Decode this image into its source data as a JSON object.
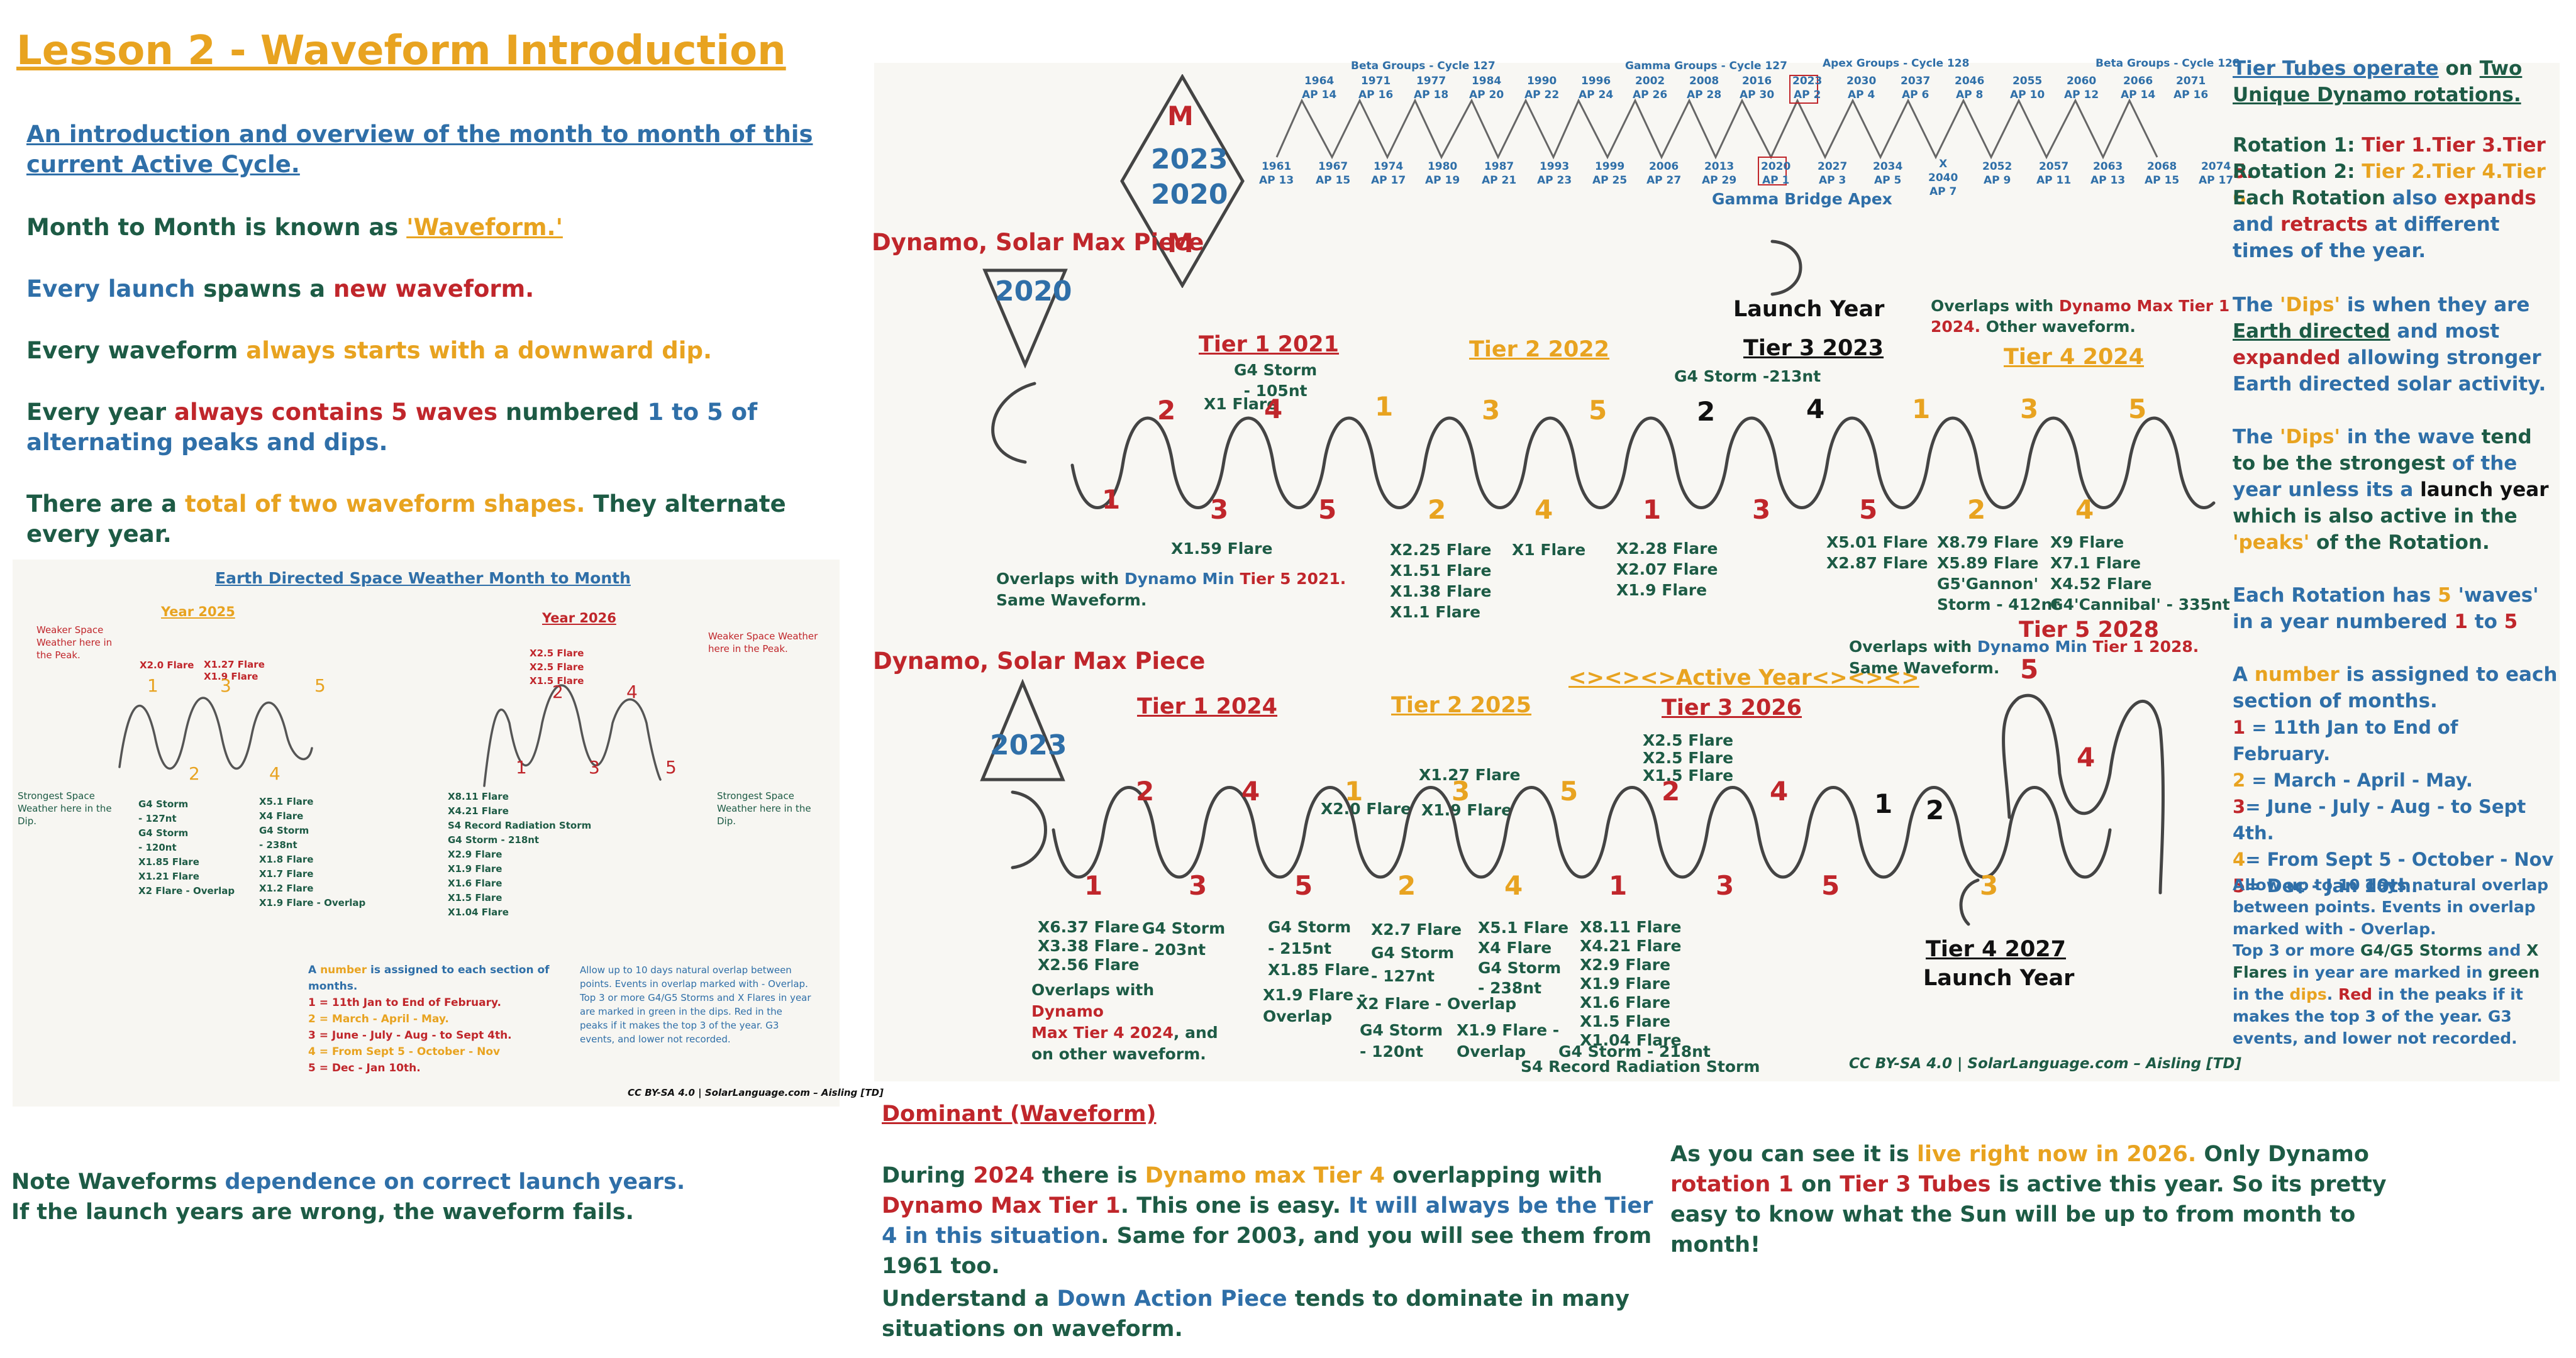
{
  "title": "Lesson 2 - Waveform Introduction",
  "intro": {
    "link": "An introduction and overview of the month to month of this current Active Cycle. ",
    "l2a": "Month to Month is known as ",
    "l2b": "'Waveform.'",
    "l3a": "Every launch",
    "l3b": " spawns a ",
    "l3c": "new waveform.",
    "l4a": "Every waveform ",
    "l4b": "always starts with a downward dip.",
    "l5a": "Every year ",
    "l5b": "always contains 5 waves",
    "l5c": " numbered ",
    "l5d": "1 to 5 of alternating peaks and dips.",
    "l6a": "There are a ",
    "l6b": "total of two waveform shapes.",
    "l6c": " They alternate every year."
  },
  "note": {
    "a": "Note Waveforms ",
    "b": "dependence on correct launch years.",
    "c": " If the launch years are wrong, the waveform fails."
  },
  "small_chart": {
    "title": "Earth Directed Space Weather Month to Month",
    "year1": "Year 2025",
    "year2": "Year 2026",
    "weak_left": "Weaker Space Weather here in the Peak.",
    "weak_right": "Weaker Space Weather here in the Peak.",
    "strong_left": "Strongest Space Weather here in the Dip.",
    "strong_right": "Strongest Space Weather here in the Dip.",
    "y1_peak_a": "X2.0 Flare",
    "y1_peak_b": "X1.27 Flare\nX1.9 Flare",
    "y1_c2": "G4 Storm\n- 127nt\nG4 Storm\n- 120nt\nX1.85 Flare\nX1.21 Flare\nX2 Flare - Overlap",
    "y1_c4": "X5.1 Flare\nX4 Flare\nG4 Storm\n- 238nt\nX1.8 Flare\nX1.7 Flare\nX1.2 Flare\nX1.9 Flare - Overlap",
    "y2_peak": "X2.5 Flare\nX2.5 Flare\nX1.5 Flare",
    "y2_c": "X8.11 Flare\nX4.21 Flare\nS4 Record Radiation Storm\nG4 Storm - 218nt\nX2.9 Flare\nX1.9 Flare\nX1.6 Flare\nX1.5 Flare\nX1.04 Flare",
    "legend_a": "A ",
    "legend_b": "number",
    "legend_c": " is assigned to each section of months.",
    "legend_1": "1 =  11th Jan to End of February.",
    "legend_2": "2 =  March - April - May.",
    "legend_3": "3 =  June - July - Aug - to Sept 4th.",
    "legend_4": "4 =  From Sept 5 - October - Nov",
    "legend_5": "5 =  Dec - Jan 10th.",
    "overlap_note": "Allow up to 10 days natural overlap between points. Events in overlap marked with - Overlap.\nTop 3 or more G4/G5 Storms and X Flares in year are marked in green in the dips. Red in the peaks if it makes the top 3 of the year. G3 events, and lower not recorded.",
    "credit": "CC BY-SA 4.0 | SolarLanguage.com – Aisling [TD]"
  },
  "cycle": {
    "beta127": "Beta Groups - Cycle 127",
    "gamma127": "Gamma Groups - Cycle 127",
    "apex128": "Apex Groups - Cycle 128",
    "beta128": "Beta Groups - Cycle 128",
    "bridge": "Gamma Bridge Apex",
    "top": [
      "1964\nAP 14",
      "1971\nAP 16",
      "1977\nAP 18",
      "1984\nAP 20",
      "1990\nAP 22",
      "1996\nAP 24",
      "2002\nAP 26",
      "2008\nAP 28",
      "2016\nAP 30",
      "2023\nAP 2",
      "2030\nAP 4",
      "2037\nAP 6",
      "2046\nAP 8",
      "2055\nAP 10",
      "2060\nAP 12",
      "2066\nAP 14",
      "2071\nAP 16"
    ],
    "bottom": [
      "1961\nAP 13",
      "1967\nAP 15",
      "1974\nAP 17",
      "1980\nAP 19",
      "1987\nAP 21",
      "1993\nAP 23",
      "1999\nAP 25",
      "2006\nAP 27",
      "2013\nAP 29",
      "2020\nAP 1",
      "2027\nAP 3",
      "2034\nAP 5",
      "X\n2040\nAP 7",
      "2052\nAP 9",
      "2057\nAP 11",
      "2063\nAP 13",
      "2068\nAP 15",
      "2074\nAP 17"
    ]
  },
  "diamond": {
    "m1": "M",
    "y1": "2023",
    "y2": "2020",
    "m2": "M"
  },
  "upper": {
    "piece": "Dynamo, Solar Max Piece",
    "year": "2020",
    "launch": "Launch Year",
    "tier1": "Tier 1 2021",
    "tier2": "Tier 2 2022",
    "tier3": "Tier 3 2023",
    "tier4": "Tier 4 2024",
    "t1_note": "G4 Storm\n- 105nt",
    "t1_x": "X1 Flare",
    "t3_note": "G4 Storm -213nt",
    "overlap_top_a": "Overlaps with ",
    "overlap_top_b": "Dynamo Max",
    "overlap_top_c": " Tier 1 2024.",
    "overlap_top_d": " Other waveform.",
    "overlap_bot_a": "Overlaps with ",
    "overlap_bot_b": "Dynamo Min",
    "overlap_bot_c": " Tier 5 2021.",
    "overlap_bot_d": "Same Waveform.",
    "numbers": [
      "1",
      "2",
      "3",
      "4",
      "5",
      "1",
      "2",
      "3",
      "4",
      "5",
      "1",
      "2",
      "3",
      "4",
      "5",
      "1",
      "2",
      "3",
      "4",
      "5"
    ],
    "e1": "X1.59 Flare",
    "e2": "X2.25 Flare\nX1.51 Flare\nX1.38 Flare\nX1.1 Flare",
    "e3": "X1 Flare",
    "e4": "X2.28 Flare\nX2.07 Flare\nX1.9 Flare",
    "e5": "X5.01 Flare\nX2.87 Flare",
    "e6": "X8.79 Flare\nX5.89 Flare\nG5'Gannon'\nStorm - 412nt",
    "e7": "X9 Flare\nX7.1 Flare\nX4.52 Flare\nG4'Cannibal' - 335nt"
  },
  "lower": {
    "piece": "Dynamo, Solar Max Piece",
    "year": "2023",
    "tier1": "Tier 1 2024",
    "tier2": "Tier 2 2025",
    "active": "<><><>Active Year<><><>",
    "tier3": "Tier 3 2026",
    "tier5": "Tier 5 2028",
    "tier4": "Tier 4 2027",
    "launch": "Launch Year",
    "overlap_a": "Overlaps with ",
    "overlap_b": "Dynamo Min",
    "overlap_c": " Tier 1 2028.",
    "overlap_d": "Same Waveform.",
    "p_x2": "X2.0 Flare",
    "p_x127": "X1.27 Flare",
    "p_x19": "X1.9 Flare",
    "p_x25": "X2.5 Flare\nX2.5 Flare\nX1.5 Flare",
    "numbers": [
      "1",
      "2",
      "3",
      "4",
      "5",
      "1",
      "2",
      "3",
      "4",
      "5",
      "1",
      "2",
      "3",
      "4",
      "5",
      "1",
      "2",
      "3",
      "4",
      "5"
    ],
    "e1": "X6.37 Flare\nX3.38 Flare\nX2.56 Flare",
    "e2": "G4 Storm\n- 203nt",
    "e3": "G4 Storm\n- 215nt\nX1.85 Flare",
    "e3b": "X1.9 Flare -\nOverlap",
    "e4": "X2.7 Flare\nG4 Storm\n- 127nt",
    "e4b": "X2 Flare - Overlap",
    "e4c": "G4 Storm\n- 120nt",
    "e5": "X5.1 Flare\nX4 Flare\nG4 Storm\n- 238nt",
    "e5b": "X1.9 Flare -\nOverlap",
    "e6": "X8.11 Flare\nX4.21 Flare\nX2.9 Flare\nX1.9 Flare\nX1.6 Flare\nX1.5 Flare\nX1.04 Flare",
    "e6b": "G4 Storm - 218nt",
    "e6c": "S4 Record Radiation Storm",
    "ov_a": "Overlaps with ",
    "ov_b": "Dynamo",
    "ov_c": "Max Tier 4 2024",
    "ov_d": ", and on other waveform.",
    "credit": "CC BY-SA 4.0 | SolarLanguage.com – Aisling [TD]"
  },
  "dominant": {
    "heading": "Dominant (Waveform)",
    "p1a": "During ",
    "p1b": "2024",
    "p1c": " there is ",
    "p1d": "Dynamo max Tier 4",
    "p1e": " overlapping with ",
    "p1f": "Dynamo Max Tier 1",
    "p1g": ". This one is easy. ",
    "p1h": "It will always be the Tier 4 in this situation",
    "p1i": ". Same for 2003, and you will see them from 1961 too.",
    "p2a": "Understand a ",
    "p2b": "Down Action Piece",
    "p2c": " tends to dominate in many situations on waveform."
  },
  "live": {
    "a": "As you can see it is ",
    "b": "live right now in 2026.",
    "c": " Only Dynamo ",
    "d": "rotation 1",
    "e": " on ",
    "f": "Tier 3 Tubes",
    "g": " is active this year. So its pretty easy to know what the Sun will be up to from month to month!"
  },
  "right": {
    "r1a": "Tier Tubes operate",
    "r1b": " on ",
    "r1c": "Two Unique Dynamo rotations.",
    "r2a": "Rotation 1: ",
    "r2b": "Tier 1.Tier 3.Tier 5.",
    "r3a": "Rotation 2: ",
    "r3b": "Tier 2.Tier 4.Tier 6.",
    "r4a": "Each Rotation ",
    "r4b": "also ",
    "r4c": "expands",
    "r4d": " and ",
    "r4e": "retracts",
    "r4f": " at different times of the year.",
    "r5a": "The ",
    "r5b": "'Dips'",
    "r5c": " is when they are ",
    "r5d": "Earth directed",
    "r5e": " and most ",
    "r5f": "expanded",
    "r5g": " allowing stronger Earth directed solar activity.",
    "r6a": "The ",
    "r6b": "'Dips'",
    "r6c": " in the wave ",
    "r6d": "tend to be the strongest",
    "r6e": " of the year unless its a ",
    "r6f": "launch year",
    "r6g": " which is also active in the ",
    "r6h": "'peaks'",
    "r6i": " of the Rotation.",
    "r7a": "Each Rotation has ",
    "r7b": "5",
    "r7c": " 'waves' in a year numbered ",
    "r7d": "1",
    "r7e": " to ",
    "r7f": "5",
    "r8a": "A ",
    "r8b": "number",
    "r8c": " is assigned to each section of months.",
    "k1": "1",
    "k1t": " = 11th Jan to End of February.",
    "k2": "2",
    "k2t": " = March - April - May.",
    "k3": "3",
    "k3t": "=  June - July - Aug - to Sept 4th.",
    "k4": "4",
    "k4t": "=  From Sept 5 - October - Nov",
    "k5": "5",
    "k5t": "=  Dec - Jan 10th.",
    "n1": "Allow up to 10 days natural overlap between points. Events in overlap marked with - Overlap.",
    "n2a": "Top 3 or more ",
    "n2b": "G4/G5 Storms",
    "n2c": " and ",
    "n2d": "X Flares",
    "n2e": " in year are marked in ",
    "n2f": "green",
    "n2g": " in the ",
    "n2h": "dips",
    "n2i": ". ",
    "n2j": "Red",
    "n2k": " in the peaks if it makes the top 3 of the year. G3 events, and lower not recorded."
  },
  "colors": {
    "green": "#1d5b45",
    "blue": "#2f6fa8",
    "red": "#c0262b",
    "orange": "#e8a320"
  }
}
